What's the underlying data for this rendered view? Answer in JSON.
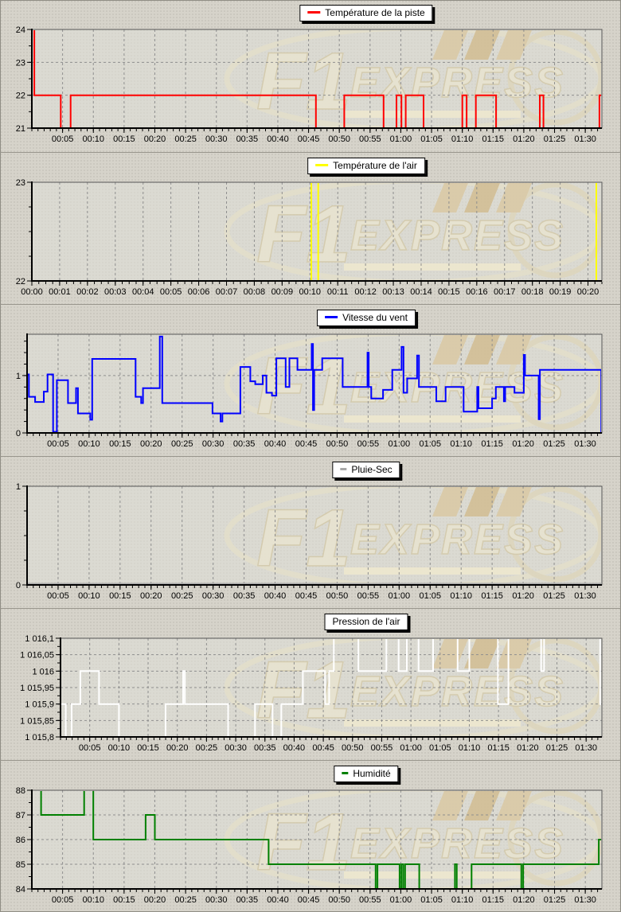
{
  "page": {
    "background_color": "#d6d3ca",
    "watermark": {
      "text_f1": "F1",
      "text_express": "EXPRESS",
      "cream": "#e9e4d0",
      "tan": "#dac9a4",
      "outline": "#d3c9a9"
    }
  },
  "chart_data": [
    {
      "type": "step-line",
      "legend_label": "Température de la piste",
      "color": "#ff0000",
      "x_domain": [
        0,
        92.7
      ],
      "x_ticks": {
        "values": [
          5,
          10,
          15,
          20,
          25,
          30,
          35,
          40,
          45,
          50,
          55,
          60,
          65,
          70,
          75,
          80,
          85,
          90
        ],
        "labels": [
          "00:05",
          "00:10",
          "00:15",
          "00:20",
          "00:25",
          "00:30",
          "00:35",
          "00:40",
          "00:45",
          "00:50",
          "00:55",
          "01:00",
          "01:05",
          "01:10",
          "01:15",
          "01:20",
          "01:25",
          "01:30"
        ]
      },
      "x_minor_step": 1,
      "y_domain": [
        21,
        24
      ],
      "y_ticks": {
        "values": [
          21,
          22,
          23,
          24
        ],
        "labels": [
          "21",
          "22",
          "23",
          "24"
        ]
      },
      "y_minor_step": 0.5,
      "points": [
        [
          0,
          24
        ],
        [
          0.4,
          22
        ],
        [
          4.7,
          21
        ],
        [
          6.3,
          22
        ],
        [
          46.2,
          21
        ],
        [
          50.8,
          22
        ],
        [
          57.2,
          21
        ],
        [
          59.3,
          22
        ],
        [
          60.1,
          21
        ],
        [
          60.8,
          22
        ],
        [
          63.7,
          21
        ],
        [
          70,
          22
        ],
        [
          70.7,
          21
        ],
        [
          72.2,
          22
        ],
        [
          75.5,
          21
        ],
        [
          82.6,
          22
        ],
        [
          83.2,
          21
        ],
        [
          92.3,
          22
        ],
        [
          92.7,
          22
        ]
      ]
    },
    {
      "type": "step-line",
      "legend_label": "Température de l'air",
      "color": "#ffff00",
      "x_domain": [
        0,
        20.5
      ],
      "x_ticks": {
        "values": [
          0,
          1,
          2,
          3,
          4,
          5,
          6,
          7,
          8,
          9,
          10,
          11,
          12,
          13,
          14,
          15,
          16,
          17,
          18,
          19,
          20
        ],
        "labels": [
          "00:00",
          "00:01",
          "00:02",
          "00:03",
          "00:04",
          "00:05",
          "00:06",
          "00:07",
          "00:08",
          "00:09",
          "00:10",
          "00:11",
          "00:12",
          "00:13",
          "00:14",
          "00:15",
          "00:16",
          "00:17",
          "00:18",
          "00:19",
          "00:20"
        ]
      },
      "x_minor_step": 0.25,
      "y_domain": [
        22,
        23
      ],
      "y_ticks": {
        "values": [
          22,
          23
        ],
        "labels": [
          "22",
          "23"
        ]
      },
      "y_minor_step": 0.25,
      "points": [
        [
          0,
          22
        ],
        [
          10.05,
          23
        ],
        [
          10.3,
          22
        ],
        [
          20.3,
          23
        ],
        [
          20.5,
          23
        ]
      ]
    },
    {
      "type": "step-line",
      "legend_label": "Vitesse du vent",
      "color": "#0000ff",
      "x_domain": [
        0,
        92.7
      ],
      "x_ticks": {
        "values": [
          5,
          10,
          15,
          20,
          25,
          30,
          35,
          40,
          45,
          50,
          55,
          60,
          65,
          70,
          75,
          80,
          85,
          90
        ],
        "labels": [
          "00:05",
          "00:10",
          "00:15",
          "00:20",
          "00:25",
          "00:30",
          "00:35",
          "00:40",
          "00:45",
          "00:50",
          "00:55",
          "01:00",
          "01:05",
          "01:10",
          "01:15",
          "01:20",
          "01:25",
          "01:30"
        ]
      },
      "x_minor_step": 1,
      "y_domain": [
        0,
        1.72
      ],
      "y_ticks": {
        "values": [
          0,
          1
        ],
        "labels": [
          "0",
          "1"
        ]
      },
      "y_minor_step": 0.2,
      "points": [
        [
          0,
          0
        ],
        [
          0,
          1.02
        ],
        [
          0.3,
          0.63
        ],
        [
          1.3,
          0.54
        ],
        [
          2.7,
          0.72
        ],
        [
          3.3,
          1.02
        ],
        [
          4.2,
          0.02
        ],
        [
          4.8,
          0.92
        ],
        [
          6.6,
          0.52
        ],
        [
          7.9,
          0.78
        ],
        [
          8.2,
          0.34
        ],
        [
          10.2,
          0.23
        ],
        [
          10.5,
          1.29
        ],
        [
          17.5,
          0.63
        ],
        [
          18.4,
          0.52
        ],
        [
          18.7,
          0.78
        ],
        [
          21.4,
          1.68
        ],
        [
          21.8,
          0.52
        ],
        [
          29.9,
          0.34
        ],
        [
          31.2,
          0.2
        ],
        [
          31.5,
          0.34
        ],
        [
          34.4,
          1.15
        ],
        [
          36,
          0.9
        ],
        [
          36.8,
          0.85
        ],
        [
          38,
          1.0
        ],
        [
          38.6,
          0.7
        ],
        [
          39.5,
          0.65
        ],
        [
          40.2,
          1.3
        ],
        [
          41.7,
          0.8
        ],
        [
          42.3,
          1.3
        ],
        [
          43.6,
          1.1
        ],
        [
          45.9,
          1.55
        ],
        [
          46.1,
          0.4
        ],
        [
          46.3,
          1.1
        ],
        [
          47.6,
          1.3
        ],
        [
          50.9,
          0.8
        ],
        [
          54.9,
          1.4
        ],
        [
          55.1,
          0.8
        ],
        [
          55.5,
          0.6
        ],
        [
          57.4,
          0.75
        ],
        [
          58.9,
          1.1
        ],
        [
          60.4,
          1.5
        ],
        [
          60.7,
          0.7
        ],
        [
          61.3,
          0.95
        ],
        [
          62.9,
          1.35
        ],
        [
          63.2,
          0.8
        ],
        [
          66,
          0.55
        ],
        [
          67.5,
          0.8
        ],
        [
          70.4,
          0.37
        ],
        [
          72.6,
          0.8
        ],
        [
          72.8,
          0.43
        ],
        [
          75,
          0.6
        ],
        [
          75.6,
          0.8
        ],
        [
          76.9,
          0.55
        ],
        [
          77.1,
          0.8
        ],
        [
          78.6,
          0.7
        ],
        [
          80.1,
          1.36
        ],
        [
          80.3,
          1.0
        ],
        [
          82.5,
          0.24
        ],
        [
          82.7,
          1.1
        ],
        [
          92.5,
          1.1
        ],
        [
          92.6,
          0
        ]
      ]
    },
    {
      "type": "step-line",
      "legend_label": "Pluie-Sec",
      "color": "#a8a8a8",
      "x_domain": [
        0,
        92.7
      ],
      "x_ticks": {
        "values": [
          5,
          10,
          15,
          20,
          25,
          30,
          35,
          40,
          45,
          50,
          55,
          60,
          65,
          70,
          75,
          80,
          85,
          90
        ],
        "labels": [
          "00:05",
          "00:10",
          "00:15",
          "00:20",
          "00:25",
          "00:30",
          "00:35",
          "00:40",
          "00:45",
          "00:50",
          "00:55",
          "01:00",
          "01:05",
          "01:10",
          "01:15",
          "01:20",
          "01:25",
          "01:30"
        ]
      },
      "x_minor_step": 1,
      "y_domain": [
        0,
        1
      ],
      "y_ticks": {
        "values": [
          0,
          1
        ],
        "labels": [
          "0",
          "1"
        ]
      },
      "y_minor_step": 0.25,
      "points": [
        [
          0,
          0.012
        ],
        [
          92.7,
          0.012
        ]
      ]
    },
    {
      "type": "step-line",
      "legend_label": "Pression de l'air",
      "color": "#ffffff",
      "x_domain": [
        0,
        92.7
      ],
      "x_ticks": {
        "values": [
          5,
          10,
          15,
          20,
          25,
          30,
          35,
          40,
          45,
          50,
          55,
          60,
          65,
          70,
          75,
          80,
          85,
          90
        ],
        "labels": [
          "00:05",
          "00:10",
          "00:15",
          "00:20",
          "00:25",
          "00:30",
          "00:35",
          "00:40",
          "00:45",
          "00:50",
          "00:55",
          "01:00",
          "01:05",
          "01:10",
          "01:15",
          "01:20",
          "01:25",
          "01:30"
        ]
      },
      "x_minor_step": 1,
      "y_domain": [
        1015.8,
        1016.1
      ],
      "y_ticks": {
        "values": [
          1015.8,
          1015.85,
          1015.9,
          1015.95,
          1016,
          1016.05,
          1016.1
        ],
        "labels": [
          "1 015,8",
          "1 015,85",
          "1 015,9",
          "1 015,95",
          "1 016",
          "1 016,05",
          "1 016,1"
        ]
      },
      "y_minor_step": 0.025,
      "points": [
        [
          0,
          1015.9
        ],
        [
          0.9,
          1015.8
        ],
        [
          1.9,
          1015.9
        ],
        [
          3.4,
          1016
        ],
        [
          6.6,
          1015.9
        ],
        [
          10,
          1015.8
        ],
        [
          18,
          1015.9
        ],
        [
          21,
          1016
        ],
        [
          21.3,
          1015.9
        ],
        [
          28.7,
          1015.8
        ],
        [
          33.3,
          1015.9
        ],
        [
          36.3,
          1015.8
        ],
        [
          37.8,
          1015.9
        ],
        [
          41.5,
          1016
        ],
        [
          45.3,
          1015.9
        ],
        [
          46,
          1016
        ],
        [
          46.8,
          1016.1
        ],
        [
          51,
          1016
        ],
        [
          55.8,
          1016.1
        ],
        [
          57.9,
          1016
        ],
        [
          59.3,
          1016.1
        ],
        [
          61.3,
          1016
        ],
        [
          63.8,
          1016.1
        ],
        [
          68,
          1016
        ],
        [
          70,
          1016.1
        ],
        [
          74.9,
          1015.9
        ],
        [
          76.7,
          1016.1
        ],
        [
          82.3,
          1016
        ],
        [
          82.8,
          1016.1
        ],
        [
          92.4,
          1015.9
        ],
        [
          92.7,
          1015.9
        ]
      ]
    },
    {
      "type": "step-line",
      "legend_label": "Humidité",
      "color": "#008000",
      "x_domain": [
        0,
        92.7
      ],
      "x_ticks": {
        "values": [
          5,
          10,
          15,
          20,
          25,
          30,
          35,
          40,
          45,
          50,
          55,
          60,
          65,
          70,
          75,
          80,
          85,
          90
        ],
        "labels": [
          "00:05",
          "00:10",
          "00:15",
          "00:20",
          "00:25",
          "00:30",
          "00:35",
          "00:40",
          "00:45",
          "00:50",
          "00:55",
          "01:00",
          "01:05",
          "01:10",
          "01:15",
          "01:20",
          "01:25",
          "01:30"
        ]
      },
      "x_minor_step": 1,
      "y_domain": [
        84,
        88
      ],
      "y_ticks": {
        "values": [
          84,
          85,
          86,
          87,
          88
        ],
        "labels": [
          "84",
          "85",
          "86",
          "87",
          "88"
        ]
      },
      "y_minor_step": 0.5,
      "points": [
        [
          0,
          88
        ],
        [
          1.5,
          87
        ],
        [
          8.5,
          88
        ],
        [
          10,
          86
        ],
        [
          18.5,
          87
        ],
        [
          20,
          86
        ],
        [
          38.5,
          85
        ],
        [
          55.9,
          84
        ],
        [
          56.2,
          85
        ],
        [
          59.8,
          84
        ],
        [
          60.1,
          85
        ],
        [
          60.4,
          84
        ],
        [
          60.7,
          85
        ],
        [
          63,
          84
        ],
        [
          68.8,
          85
        ],
        [
          69.1,
          84
        ],
        [
          71.5,
          85
        ],
        [
          79.6,
          84
        ],
        [
          79.9,
          85
        ],
        [
          92.2,
          86
        ],
        [
          92.7,
          86
        ]
      ]
    }
  ]
}
